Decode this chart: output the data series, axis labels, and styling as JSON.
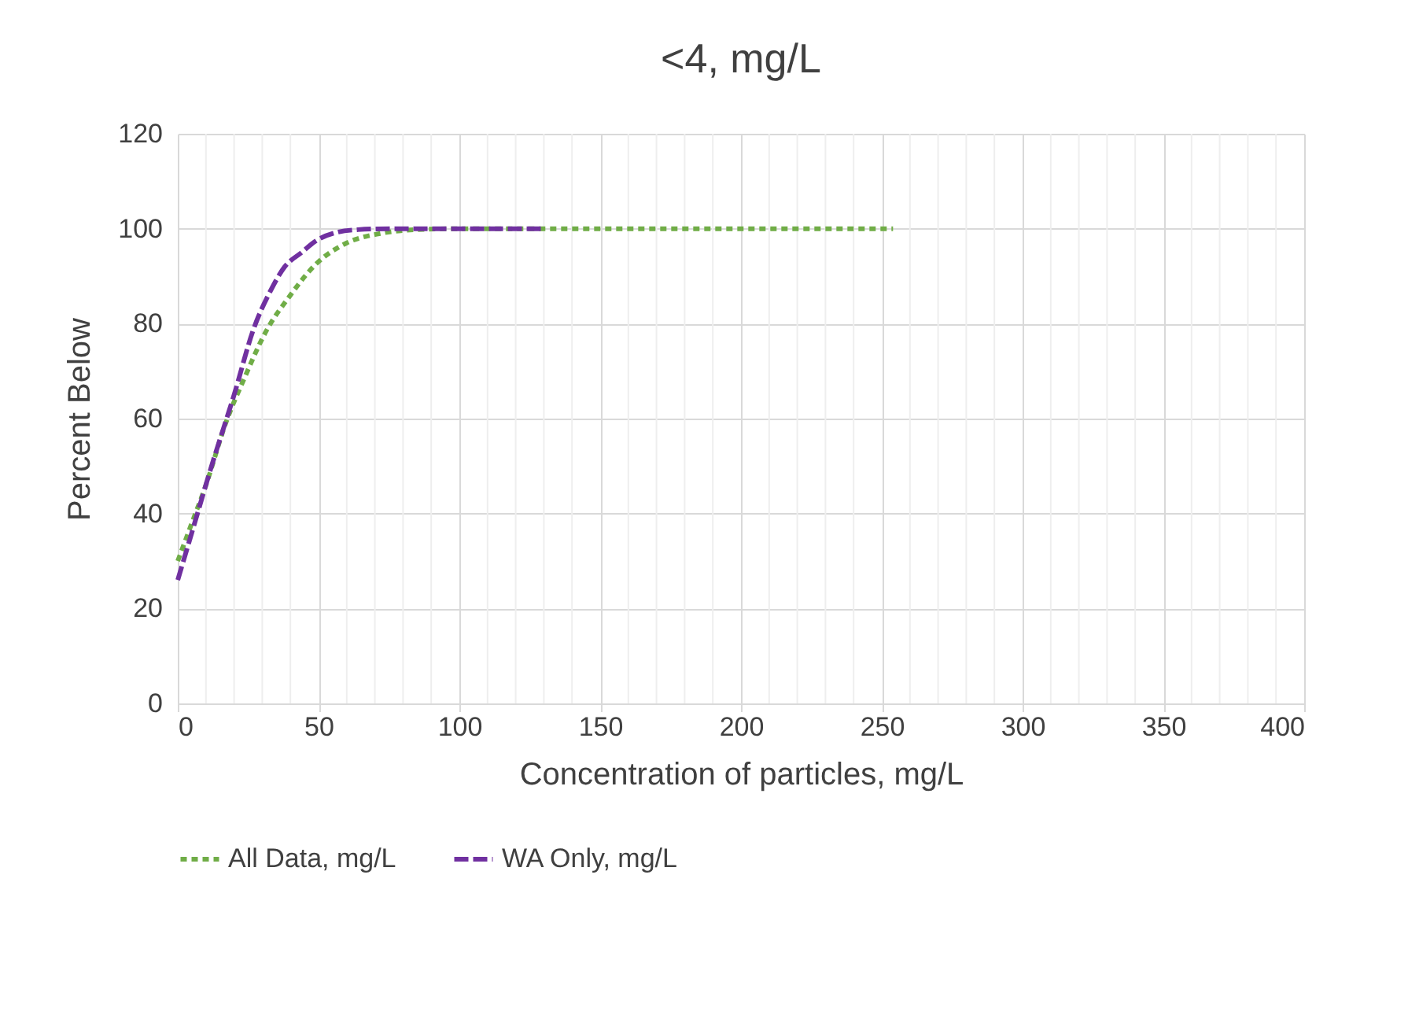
{
  "chart_data": {
    "type": "line",
    "title": "<4, mg/L",
    "xlabel": "Concentration of particles, mg/L",
    "ylabel": "Percent Below",
    "xlim": [
      0,
      400
    ],
    "xticks": [
      0,
      50,
      100,
      150,
      200,
      250,
      300,
      350,
      400
    ],
    "ylim": [
      0,
      120
    ],
    "yticks": [
      0,
      20,
      40,
      60,
      80,
      100,
      120
    ],
    "grid": true,
    "legend": "bottom",
    "marker": "none",
    "series": [
      {
        "name": "All Data, mg/L",
        "color": "#70ad47",
        "line_style": "dotted",
        "x": [
          0,
          5,
          10,
          17,
          24,
          31,
          40,
          49,
          60,
          72,
          85,
          100,
          150,
          200,
          254
        ],
        "values": [
          30,
          38,
          46,
          59,
          69,
          78,
          86,
          92.5,
          97,
          99,
          99.8,
          100,
          100,
          100,
          100
        ]
      },
      {
        "name": "WA Only, mg/L",
        "color": "#7030a0",
        "line_style": "dashed",
        "x": [
          0,
          5,
          12,
          20,
          27,
          33,
          38,
          44,
          49,
          57,
          64,
          75,
          90,
          110,
          130
        ],
        "values": [
          26,
          36,
          50,
          65,
          79,
          87,
          92,
          95,
          97.4,
          99.3,
          99.8,
          100,
          100,
          100,
          100
        ]
      }
    ]
  }
}
